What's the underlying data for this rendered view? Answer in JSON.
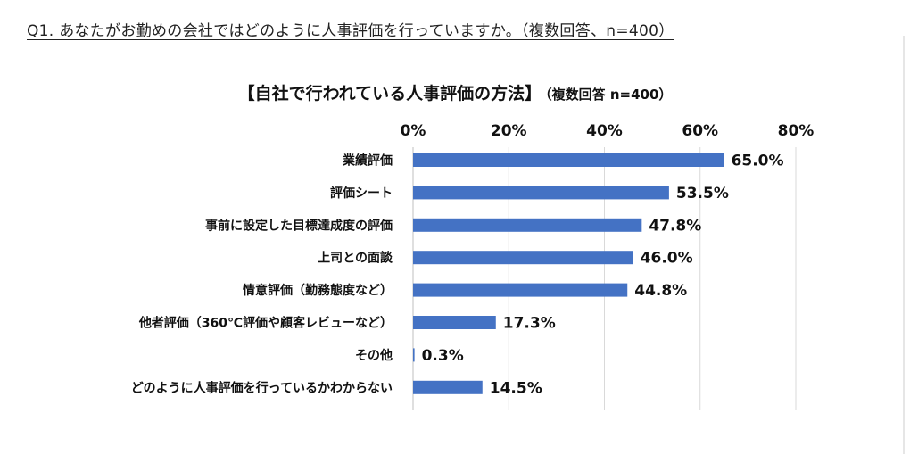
{
  "question": "Q1. あなたがお勤めの会社ではどのように人事評価を行っていますか。（複数回答、n=400）",
  "chart_data": {
    "type": "bar",
    "orientation": "horizontal",
    "title": "【自社で行われている人事評価の方法】",
    "subtitle": "（複数回答 n=400）",
    "categories": [
      "業績評価",
      "評価シート",
      "事前に設定した目標達成度の評価",
      "上司との面談",
      "情意評価（勤務態度など）",
      "他者評価（360℃評価や顧客レビューなど）",
      "その他",
      "どのように人事評価を行っているかわからない"
    ],
    "values": [
      65.0,
      53.5,
      47.8,
      46.0,
      44.8,
      17.3,
      0.3,
      14.5
    ],
    "value_labels": [
      "65.0%",
      "53.5%",
      "47.8%",
      "46.0%",
      "44.8%",
      "17.3%",
      "0.3%",
      "14.5%"
    ],
    "x_ticks": [
      0,
      20,
      40,
      60,
      80
    ],
    "x_tick_labels": [
      "0%",
      "20%",
      "40%",
      "60%",
      "80%"
    ],
    "xlim": [
      0,
      80
    ],
    "grid": true,
    "axis_position": "top",
    "bar_color": "#4472C4",
    "grid_color": "#D9D9D9"
  }
}
